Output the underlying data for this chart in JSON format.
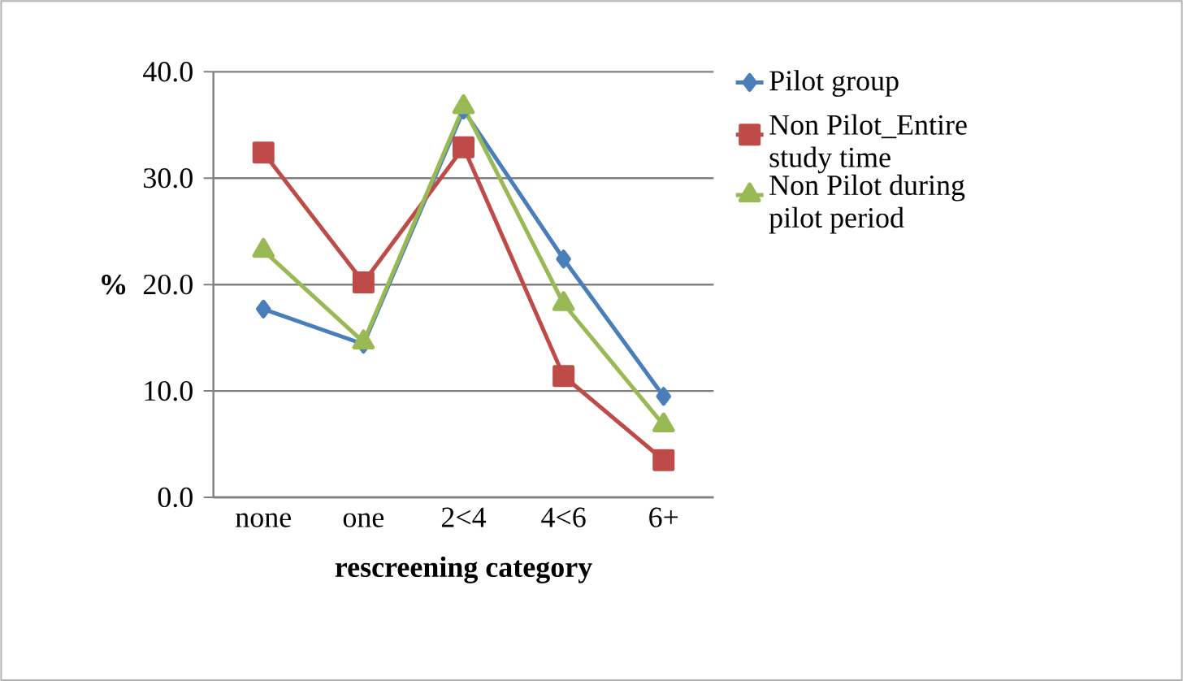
{
  "chart_data": {
    "type": "line",
    "xlabel": "rescreening category",
    "ylabel": "%",
    "categories": [
      "none",
      "one",
      "2<4",
      "4<6",
      "6+"
    ],
    "series": [
      {
        "name": "Pilot group",
        "color": "#4a7ebb",
        "marker": "diamond",
        "values": [
          17.7,
          14.4,
          36.4,
          22.4,
          9.5
        ]
      },
      {
        "name": "Non Pilot_Entire study time",
        "color": "#be4b48",
        "marker": "square",
        "values": [
          32.4,
          20.2,
          32.9,
          11.4,
          3.5
        ]
      },
      {
        "name": "Non Pilot during pilot period",
        "color": "#98b954",
        "marker": "triangle",
        "values": [
          23.2,
          14.6,
          36.7,
          18.2,
          6.8
        ]
      }
    ],
    "ylim": [
      0,
      40
    ],
    "yticks": [
      {
        "value": 0,
        "label": "0.0"
      },
      {
        "value": 10,
        "label": "10.0"
      },
      {
        "value": 20,
        "label": "20.0"
      },
      {
        "value": 30,
        "label": "30.0"
      },
      {
        "value": 40,
        "label": "40.0"
      }
    ],
    "grid": "y",
    "legend": "right",
    "line_style": "solid"
  }
}
